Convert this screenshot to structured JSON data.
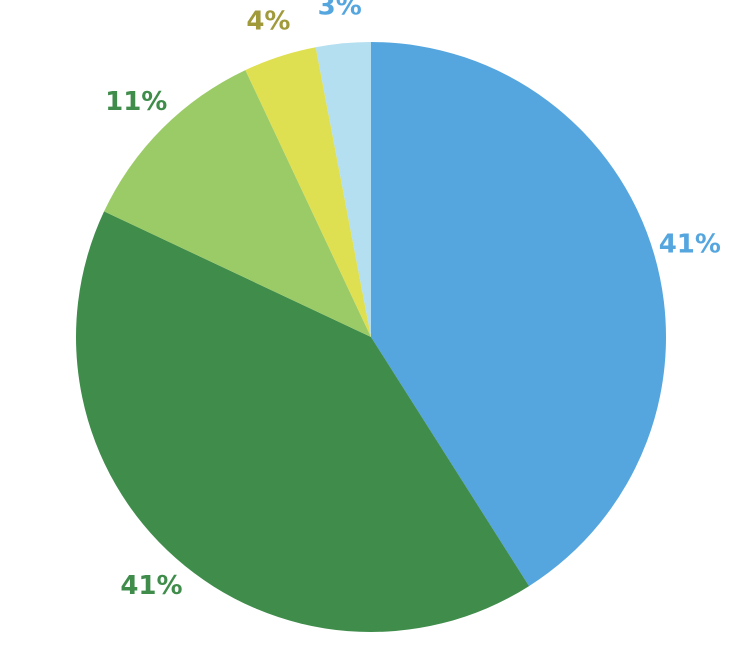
{
  "chart_data": {
    "type": "pie",
    "title": "",
    "start_angle_deg": 0,
    "direction": "clockwise",
    "slices": [
      {
        "value": 41,
        "label": "41%",
        "color": "#55a6df",
        "label_color": "#55a6df"
      },
      {
        "value": 41,
        "label": "41%",
        "color": "#3f8c4b",
        "label_color": "#3f8c4b"
      },
      {
        "value": 11,
        "label": "11%",
        "color": "#9bcb67",
        "label_color": "#3f8c4b"
      },
      {
        "value": 4,
        "label": "4%",
        "color": "#dfdf52",
        "label_color": "#a09a3a"
      },
      {
        "value": 3,
        "label": "3%",
        "color": "#b4dff0",
        "label_color": "#55a6df"
      }
    ]
  }
}
